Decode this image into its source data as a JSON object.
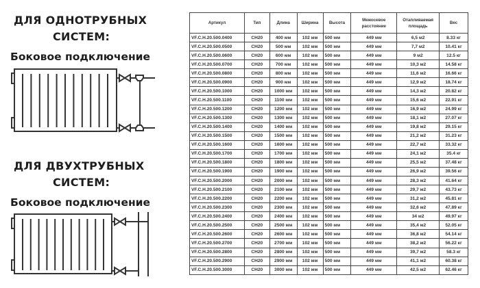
{
  "section_one": {
    "title_line1": "ДЛЯ ОДНОТРУБНЫХ",
    "title_line2": "СИСТЕМ:",
    "connection": "Боковое подключение"
  },
  "section_two": {
    "title_line1": "ДЛЯ ДВУХТРУБНЫХ",
    "title_line2": "СИСТЕМ:",
    "connection": "Боковое подключение"
  },
  "table": {
    "headers": [
      "Артикул",
      "Тип",
      "Длина",
      "Ширина",
      "Высота",
      "Межосевое расстояние",
      "Отапливаемая площадь",
      "Вес"
    ],
    "rows": [
      [
        "VF.C.H.20.500.0400",
        "CH20",
        "400 мм",
        "102 мм",
        "500 мм",
        "449 мм",
        "6,5 м2",
        "8.33 кг"
      ],
      [
        "VF.C.H.20.500.0500",
        "CH20",
        "500 мм",
        "102 мм",
        "500 мм",
        "449 мм",
        "7,7 м2",
        "10.41 кг"
      ],
      [
        "VF.C.H.20.500.0600",
        "CH20",
        "600 мм",
        "102 мм",
        "500 мм",
        "449 мм",
        "9 м2",
        "12.5 кг"
      ],
      [
        "VF.C.H.20.500.0700",
        "CH20",
        "700 мм",
        "102 мм",
        "500 мм",
        "449 мм",
        "10,3 м2",
        "14.58 кг"
      ],
      [
        "VF.C.H.20.500.0800",
        "CH20",
        "800 мм",
        "102 мм",
        "500 мм",
        "449 мм",
        "11,6 м2",
        "16.66 кг"
      ],
      [
        "VF.C.H.20.500.0900",
        "CH20",
        "900 мм",
        "102 мм",
        "500 мм",
        "449 мм",
        "12,9 м2",
        "18.74 кг"
      ],
      [
        "VF.C.H.20.500.1000",
        "CH20",
        "1000 мм",
        "102 мм",
        "500 мм",
        "449 мм",
        "14,3 м2",
        "20.82 кг"
      ],
      [
        "VF.C.H.20.500.1100",
        "CH20",
        "1100 мм",
        "102 мм",
        "500 мм",
        "449 мм",
        "15,6 м2",
        "22.91 кг"
      ],
      [
        "VF.C.H.20.500.1200",
        "CH20",
        "1200 мм",
        "102 мм",
        "500 мм",
        "449 мм",
        "16,9 м2",
        "24.99 кг"
      ],
      [
        "VF.C.H.20.500.1300",
        "CH20",
        "1300 мм",
        "102 мм",
        "500 мм",
        "449 мм",
        "18,1 м2",
        "27.07 кг"
      ],
      [
        "VF.C.H.20.500.1400",
        "CH20",
        "1400 мм",
        "102 мм",
        "500 мм",
        "449 мм",
        "19,8 м2",
        "29.15 кг"
      ],
      [
        "VF.C.H.20.500.1500",
        "CH20",
        "1500 мм",
        "102 мм",
        "500 мм",
        "449 мм",
        "21,2 м2",
        "31.23 кг"
      ],
      [
        "VF.C.H.20.500.1600",
        "CH20",
        "1600 мм",
        "102 мм",
        "500 мм",
        "449 мм",
        "22,7 м2",
        "33.32 кг"
      ],
      [
        "VF.C.H.20.500.1700",
        "CH20",
        "1700 мм",
        "102 мм",
        "500 мм",
        "449 мм",
        "24,1 м2",
        "35.4 кг"
      ],
      [
        "VF.C.H.20.500.1800",
        "CH20",
        "1800 мм",
        "102 мм",
        "500 мм",
        "449 мм",
        "25,5 м2",
        "37.48 кг"
      ],
      [
        "VF.C.H.20.500.1900",
        "CH20",
        "1900 мм",
        "102 мм",
        "500 мм",
        "449 мм",
        "26,9 м2",
        "39.56 кг"
      ],
      [
        "VF.C.H.20.500.2000",
        "CH20",
        "2000 мм",
        "102 мм",
        "500 мм",
        "449 мм",
        "28,3 м2",
        "41.64 кг"
      ],
      [
        "VF.C.H.20.500.2100",
        "CH20",
        "2100 мм",
        "102 мм",
        "500 мм",
        "449 мм",
        "29,7 м2",
        "43.73 кг"
      ],
      [
        "VF.C.H.20.500.2200",
        "CH20",
        "2200 мм",
        "102 мм",
        "500 мм",
        "449 мм",
        "31,2 м2",
        "45.81 кг"
      ],
      [
        "VF.C.H.20.500.2300",
        "CH20",
        "2300 мм",
        "102 мм",
        "500 мм",
        "449 мм",
        "32,6 м2",
        "47.89 кг"
      ],
      [
        "VF.C.H.20.500.2400",
        "CH20",
        "2400 мм",
        "102 мм",
        "500 мм",
        "449 мм",
        "34 м2",
        "49.97 кг"
      ],
      [
        "VF.C.H.20.500.2500",
        "CH20",
        "2500 мм",
        "102 мм",
        "500 мм",
        "449 мм",
        "35,4 м2",
        "52.05 кг"
      ],
      [
        "VF.C.H.20.500.2600",
        "CH20",
        "2600 мм",
        "102 мм",
        "500 мм",
        "449 мм",
        "36,8 м2",
        "54.14 кг"
      ],
      [
        "VF.C.H.20.500.2700",
        "CH20",
        "2700 мм",
        "102 мм",
        "500 мм",
        "449 мм",
        "38,2 м2",
        "56.22 кг"
      ],
      [
        "VF.C.H.20.500.2800",
        "CH20",
        "2800 мм",
        "102 мм",
        "500 мм",
        "449 мм",
        "39,7 м2",
        "58.3 кг"
      ],
      [
        "VF.C.H.20.500.2900",
        "CH20",
        "2900 мм",
        "102 мм",
        "500 мм",
        "449 мм",
        "41,1 м2",
        "60.38 кг"
      ],
      [
        "VF.C.H.20.500.3000",
        "CH20",
        "3000 мм",
        "102 мм",
        "500 мм",
        "449 мм",
        "42,5 м2",
        "62.46 кг"
      ]
    ]
  }
}
